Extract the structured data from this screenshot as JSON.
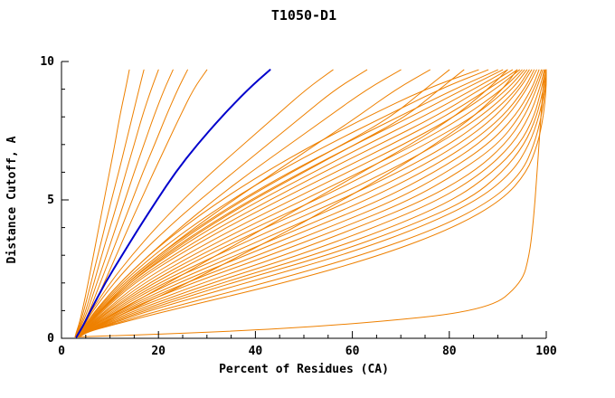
{
  "chart_data": {
    "type": "line",
    "title": "T1050-D1",
    "xlabel": "Percent of Residues (CA)",
    "ylabel": "Distance Cutoff, A",
    "xlim": [
      0,
      100
    ],
    "ylim": [
      0,
      10
    ],
    "x_major_ticks": [
      0,
      20,
      40,
      60,
      80,
      100
    ],
    "x_minor_step": 5,
    "y_major_ticks": [
      0,
      5,
      10
    ],
    "y_minor_step": 1,
    "grid": false,
    "legend": "none",
    "colors": {
      "orange": "#EE8000",
      "blue": "#0000CC",
      "axis": "#000000"
    },
    "y_levels": [
      0.05,
      0.2,
      0.5,
      1,
      2,
      3,
      4,
      5,
      6,
      7,
      8,
      9,
      9.7
    ],
    "series": [
      {
        "color": "orange",
        "x": [
          2.8,
          3.0,
          3.6,
          4.3,
          5.5,
          6.6,
          7.7,
          8.8,
          9.9,
          11,
          12,
          13.2,
          14
        ]
      },
      {
        "color": "orange",
        "x": [
          2.8,
          3.1,
          3.8,
          4.6,
          6.1,
          7.5,
          8.9,
          10.3,
          11.8,
          13.2,
          14.6,
          16,
          17
        ]
      },
      {
        "color": "orange",
        "x": [
          2.9,
          3.2,
          4.0,
          5.0,
          6.7,
          8.3,
          10,
          11.7,
          13.3,
          15,
          16.6,
          18.5,
          20
        ]
      },
      {
        "color": "orange",
        "x": [
          2.9,
          3.3,
          4.2,
          5.4,
          7.3,
          9.3,
          11.2,
          13.1,
          15,
          17,
          19,
          21.2,
          23
        ]
      },
      {
        "color": "orange",
        "x": [
          3.0,
          3.4,
          4.5,
          5.8,
          8,
          10.2,
          12.4,
          14.6,
          16.8,
          19.2,
          21.5,
          24,
          26
        ]
      },
      {
        "color": "orange",
        "x": [
          3.0,
          3.5,
          4.7,
          6.2,
          8.8,
          11.3,
          13.8,
          16.4,
          19,
          21.7,
          24.4,
          27.2,
          30
        ]
      },
      {
        "color": "orange",
        "x": [
          3.1,
          3.6,
          4.6,
          6.2,
          10,
          14.5,
          19.5,
          25,
          31,
          37.5,
          44,
          50.5,
          56
        ]
      },
      {
        "color": "orange",
        "x": [
          3.1,
          3.7,
          4.8,
          6.5,
          10.8,
          16,
          22,
          28.5,
          35.5,
          42.5,
          49.5,
          56.5,
          63
        ]
      },
      {
        "color": "orange",
        "x": [
          3.2,
          3.7,
          5.0,
          7.0,
          12,
          18,
          24.5,
          31.5,
          39,
          47,
          55,
          63,
          70
        ]
      },
      {
        "color": "orange",
        "x": [
          3.2,
          3.8,
          5.2,
          7.5,
          13,
          20,
          27.5,
          35.5,
          44,
          52.5,
          61,
          69,
          76
        ]
      },
      {
        "color": "orange",
        "x": [
          3.2,
          3.6,
          5.4,
          8.0,
          13.5,
          20.5,
          28.5,
          37.5,
          47.5,
          58,
          68,
          75,
          80
        ]
      },
      {
        "color": "orange",
        "x": [
          3.2,
          3.6,
          5.5,
          8.2,
          14,
          21.5,
          30,
          39.5,
          50,
          60.5,
          71,
          78,
          83
        ]
      },
      {
        "color": "orange",
        "x": [
          3.3,
          4.0,
          7.0,
          12,
          22,
          32,
          42,
          52,
          62,
          72,
          81,
          88,
          92
        ]
      },
      {
        "color": "orange",
        "x": [
          3.4,
          4.2,
          8.0,
          14,
          26,
          37,
          48,
          58,
          68,
          77,
          85,
          91,
          94
        ]
      },
      {
        "color": "orange",
        "x": [
          3.2,
          3.5,
          5.0,
          7.0,
          12,
          18,
          25,
          33,
          42,
          52,
          63,
          75,
          86
        ]
      },
      {
        "color": "orange",
        "x": [
          3.2,
          3.5,
          5.0,
          7.2,
          12.5,
          19,
          26.5,
          35,
          44.5,
          55,
          66.5,
          78,
          88
        ]
      },
      {
        "color": "orange",
        "x": [
          3.3,
          3.6,
          5.2,
          7.5,
          13,
          20,
          28,
          37,
          47,
          58,
          69.5,
          81,
          90
        ]
      },
      {
        "color": "orange",
        "x": [
          3.3,
          3.6,
          5.3,
          7.8,
          13.5,
          21,
          29.5,
          39,
          49.5,
          60.5,
          72,
          83,
          91
        ]
      },
      {
        "color": "orange",
        "x": [
          3.3,
          3.7,
          5.5,
          8.0,
          14,
          22,
          31,
          41,
          52,
          63,
          74.5,
          85,
          92
        ]
      },
      {
        "color": "orange",
        "x": [
          3.3,
          3.7,
          5.6,
          8.3,
          14.5,
          23,
          32.5,
          43,
          54,
          65.5,
          77,
          86.5,
          93
        ]
      },
      {
        "color": "orange",
        "x": [
          3.4,
          3.8,
          5.8,
          8.6,
          15,
          24,
          34,
          45,
          56.5,
          68,
          79,
          88,
          94
        ]
      },
      {
        "color": "orange",
        "x": [
          3.4,
          3.8,
          6.0,
          9.0,
          16,
          25.5,
          36,
          47.5,
          59,
          70.5,
          81,
          89.5,
          94.5
        ]
      },
      {
        "color": "orange",
        "x": [
          3.4,
          3.9,
          6.2,
          9.3,
          17,
          27,
          38,
          50,
          61.5,
          73,
          83,
          91,
          95
        ]
      },
      {
        "color": "orange",
        "x": [
          3.4,
          3.9,
          6.4,
          9.7,
          18,
          28.5,
          40,
          52.5,
          64,
          75,
          85,
          92,
          95.5
        ]
      },
      {
        "color": "orange",
        "x": [
          3.5,
          4.0,
          6.6,
          10,
          19,
          30,
          42,
          55,
          67,
          77.5,
          86.5,
          93,
          96
        ]
      },
      {
        "color": "orange",
        "x": [
          3.5,
          4.0,
          6.8,
          10.5,
          20,
          32,
          44.5,
          57.5,
          69.5,
          80,
          88,
          94,
          96.5
        ]
      },
      {
        "color": "orange",
        "x": [
          3.5,
          4.1,
          7.0,
          11,
          21,
          34,
          47,
          60,
          72,
          82,
          89.5,
          94.5,
          97
        ]
      },
      {
        "color": "orange",
        "x": [
          3.5,
          4.1,
          7.2,
          11.5,
          22.5,
          36,
          49.5,
          63,
          74.5,
          84,
          91,
          95.5,
          97.5
        ]
      },
      {
        "color": "orange",
        "x": [
          3.6,
          4.2,
          7.5,
          12,
          24,
          38,
          52,
          66,
          77,
          86,
          92,
          96,
          98
        ]
      },
      {
        "color": "orange",
        "x": [
          3.6,
          4.2,
          7.8,
          12.5,
          25.5,
          40.5,
          55,
          69,
          79.5,
          88,
          93.5,
          97,
          98.5
        ]
      },
      {
        "color": "orange",
        "x": [
          3.6,
          4.3,
          8.0,
          13,
          27,
          43,
          58,
          72,
          82,
          90,
          94.5,
          97.5,
          99
        ]
      },
      {
        "color": "orange",
        "x": [
          3.6,
          4.3,
          8.3,
          14,
          29,
          46,
          61,
          75,
          85,
          91.5,
          95.5,
          98,
          99.3
        ]
      },
      {
        "color": "orange",
        "x": [
          3.7,
          4.4,
          8.6,
          15,
          31,
          49,
          64.5,
          78,
          87,
          93,
          96.5,
          98.6,
          99.6
        ]
      },
      {
        "color": "orange",
        "x": [
          3.7,
          4.4,
          9.0,
          16,
          33,
          52,
          68,
          81,
          89,
          94.5,
          97.5,
          99,
          99.8
        ]
      },
      {
        "color": "orange",
        "x": [
          3.7,
          4.5,
          9.5,
          17,
          35,
          55,
          71,
          84,
          91,
          95.5,
          98,
          99.4,
          100
        ]
      },
      {
        "color": "orange",
        "x": [
          3.8,
          4.5,
          10,
          18,
          38,
          58,
          74,
          86,
          93,
          96.5,
          98.5,
          99.7,
          100
        ]
      },
      {
        "color": "orange",
        "x": [
          3.8,
          4.6,
          10.5,
          20,
          42,
          62,
          78,
          89,
          95,
          97.5,
          99,
          99.8,
          100
        ]
      },
      {
        "color": "orange",
        "x": [
          3.8,
          4.7,
          11,
          22,
          46,
          66,
          81,
          91,
          96,
          98.2,
          99.4,
          100,
          100
        ]
      },
      {
        "color": "orange",
        "x": [
          3,
          30,
          60,
          88,
          95,
          96.5,
          97.2,
          97.7,
          98.1,
          98.5,
          98.9,
          99.3,
          99.7
        ]
      },
      {
        "color": "blue",
        "x": [
          3.1,
          3.6,
          4.6,
          6.0,
          9.0,
          12.5,
          16,
          19.7,
          23.5,
          28,
          33,
          38.5,
          43
        ]
      }
    ]
  }
}
